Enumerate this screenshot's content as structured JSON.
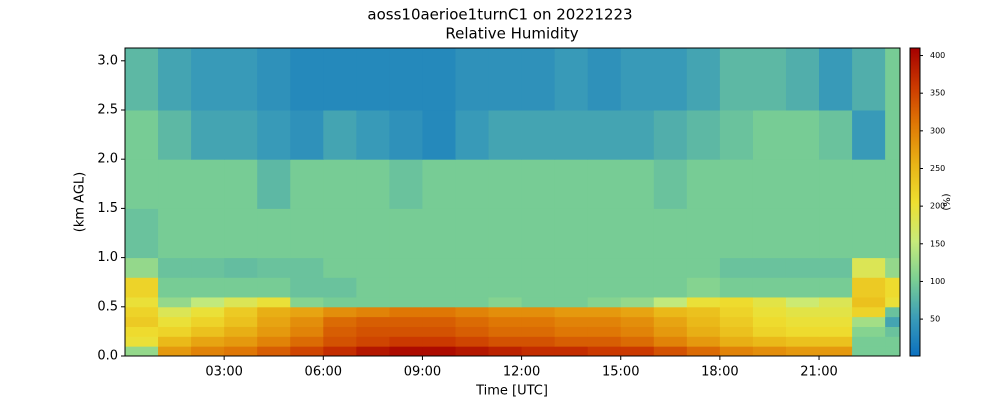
{
  "chart_data": {
    "type": "heatmap",
    "title": "aoss10aerioe1turnC1 on 20221223",
    "subtitle": "Relative Humidity",
    "x_label": "Time [UTC]",
    "y_label": "(km AGL)",
    "colorbar_label": "(%)",
    "x": [
      0,
      1,
      2,
      3,
      4,
      5,
      6,
      7,
      8,
      9,
      10,
      11,
      12,
      13,
      14,
      15,
      16,
      17,
      18,
      19,
      20,
      21,
      22,
      23
    ],
    "y": [
      0,
      0.1,
      0.2,
      0.3,
      0.4,
      0.5,
      0.6,
      0.8,
      1.0,
      1.5,
      2.0,
      2.5
    ],
    "values": [
      [
        120,
        280,
        300,
        310,
        330,
        350,
        370,
        390,
        400,
        400,
        390,
        380,
        370,
        370,
        360,
        360,
        340,
        320,
        300,
        290,
        280,
        280,
        100,
        100
      ],
      [
        200,
        250,
        270,
        280,
        300,
        320,
        340,
        350,
        360,
        360,
        350,
        340,
        340,
        330,
        330,
        320,
        300,
        280,
        260,
        250,
        240,
        240,
        100,
        100
      ],
      [
        210,
        220,
        240,
        260,
        280,
        300,
        330,
        340,
        340,
        340,
        330,
        320,
        320,
        310,
        310,
        300,
        280,
        260,
        240,
        220,
        210,
        210,
        110,
        90
      ],
      [
        230,
        200,
        220,
        240,
        270,
        290,
        320,
        330,
        330,
        330,
        320,
        310,
        310,
        300,
        300,
        290,
        270,
        250,
        230,
        210,
        200,
        200,
        130,
        60
      ],
      [
        220,
        180,
        200,
        230,
        260,
        270,
        290,
        300,
        310,
        310,
        300,
        290,
        290,
        280,
        280,
        270,
        250,
        240,
        220,
        200,
        190,
        190,
        220,
        90
      ],
      [
        200,
        120,
        150,
        180,
        200,
        110,
        100,
        100,
        100,
        100,
        100,
        110,
        100,
        100,
        110,
        120,
        150,
        200,
        210,
        190,
        160,
        180,
        240,
        200
      ],
      [
        220,
        100,
        100,
        100,
        100,
        90,
        90,
        100,
        100,
        100,
        100,
        100,
        100,
        100,
        100,
        100,
        100,
        110,
        100,
        100,
        100,
        100,
        230,
        210
      ],
      [
        120,
        90,
        90,
        85,
        90,
        90,
        100,
        100,
        100,
        100,
        100,
        100,
        100,
        100,
        100,
        100,
        100,
        100,
        90,
        90,
        90,
        90,
        180,
        120
      ],
      [
        90,
        100,
        100,
        100,
        100,
        100,
        100,
        100,
        100,
        100,
        100,
        100,
        100,
        100,
        100,
        100,
        100,
        100,
        100,
        100,
        100,
        100,
        100,
        100
      ],
      [
        100,
        100,
        100,
        100,
        80,
        100,
        100,
        100,
        90,
        100,
        100,
        100,
        100,
        100,
        100,
        100,
        90,
        100,
        100,
        100,
        100,
        100,
        100,
        100
      ],
      [
        100,
        80,
        60,
        60,
        50,
        40,
        60,
        50,
        40,
        30,
        50,
        60,
        60,
        60,
        60,
        60,
        70,
        80,
        90,
        100,
        100,
        90,
        50,
        100
      ],
      [
        80,
        60,
        50,
        50,
        40,
        30,
        30,
        30,
        30,
        30,
        40,
        40,
        40,
        50,
        40,
        50,
        50,
        60,
        80,
        80,
        70,
        50,
        70,
        100
      ]
    ],
    "xlim": [
      0,
      23.45
    ],
    "ylim": [
      0,
      3.13
    ],
    "clim": [
      1,
      410
    ],
    "colormap": [
      "#0a6fc0",
      "#3a9cb8",
      "#7bcf93",
      "#c8eb7a",
      "#eedf30",
      "#e9b316",
      "#e07a05",
      "#cc3a00",
      "#a50000"
    ],
    "xticks": [
      {
        "value": 3,
        "label": "03:00"
      },
      {
        "value": 6,
        "label": "06:00"
      },
      {
        "value": 9,
        "label": "09:00"
      },
      {
        "value": 12,
        "label": "12:00"
      },
      {
        "value": 15,
        "label": "15:00"
      },
      {
        "value": 18,
        "label": "18:00"
      },
      {
        "value": 21,
        "label": "21:00"
      }
    ],
    "yticks": [
      {
        "value": 0,
        "label": "0.0"
      },
      {
        "value": 0.5,
        "label": "0.5"
      },
      {
        "value": 1,
        "label": "1.0"
      },
      {
        "value": 1.5,
        "label": "1.5"
      },
      {
        "value": 2,
        "label": "2.0"
      },
      {
        "value": 2.5,
        "label": "2.5"
      },
      {
        "value": 3,
        "label": "3.0"
      }
    ],
    "cticks": [
      50,
      100,
      150,
      200,
      250,
      300,
      350,
      400
    ]
  }
}
